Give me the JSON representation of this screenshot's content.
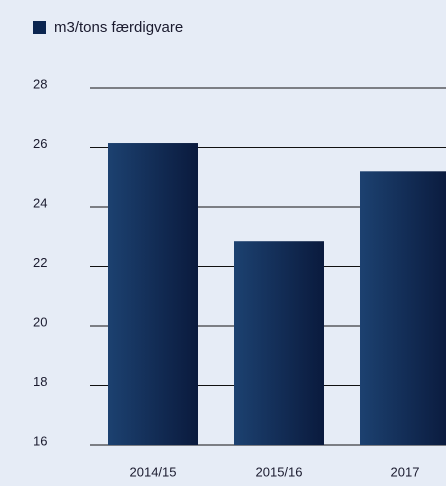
{
  "chart_data": {
    "type": "bar",
    "legend": "m3/tons færdigvare",
    "categories": [
      "2014/15",
      "2015/16",
      "2017"
    ],
    "values": [
      26.15,
      22.85,
      25.2
    ],
    "color": "#0b2550",
    "ylim": [
      16,
      28
    ],
    "yticks": [
      16,
      18,
      20,
      22,
      24,
      26,
      28
    ],
    "grid": true
  }
}
